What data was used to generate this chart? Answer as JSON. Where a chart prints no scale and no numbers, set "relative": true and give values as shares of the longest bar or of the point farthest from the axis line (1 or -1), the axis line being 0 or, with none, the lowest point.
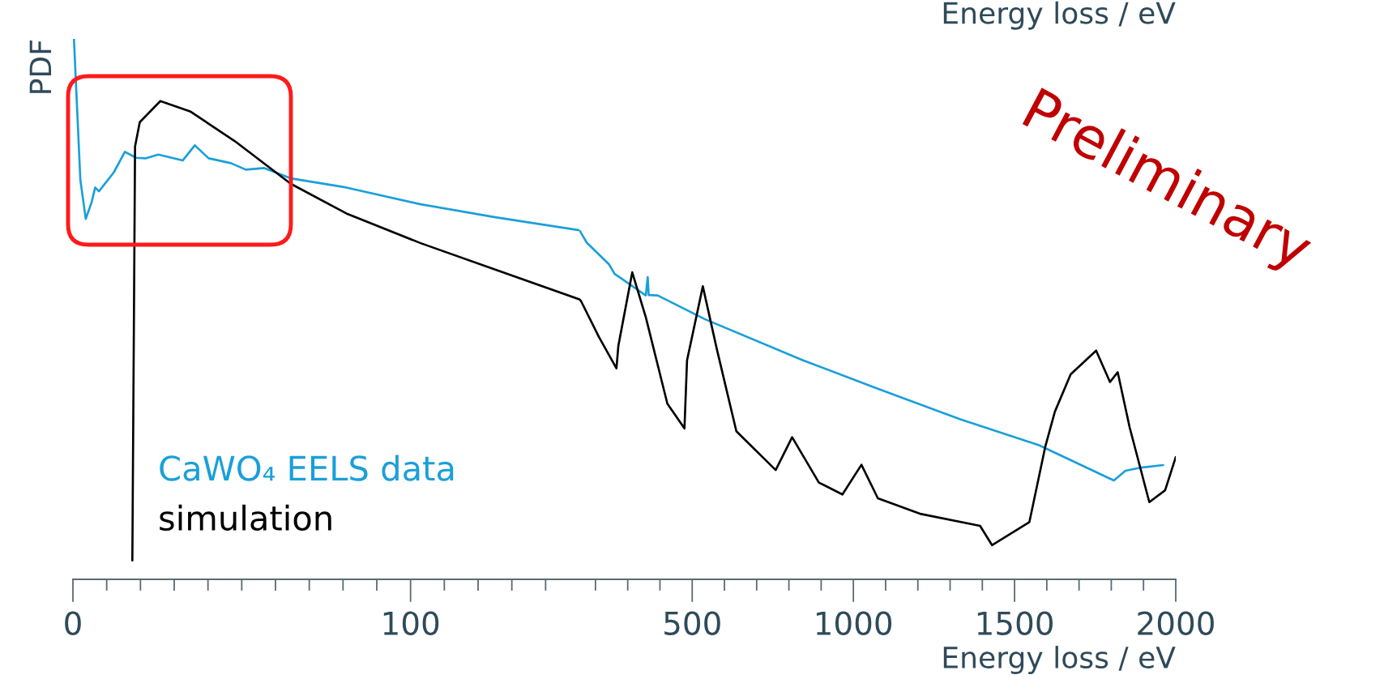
{
  "chart_data": [
    {
      "type": "line",
      "relative": true,
      "ylabel": "PDF",
      "tick_labels": "x",
      "marker": "none",
      "line_style": "solid",
      "xlim": [
        0,
        150
      ],
      "xticks": [
        0,
        {
          "value": 10,
          "label": null
        },
        {
          "value": 20,
          "label": null
        },
        {
          "value": 30,
          "label": null
        },
        {
          "value": 40,
          "label": null
        },
        {
          "value": 50,
          "label": null
        },
        {
          "value": 60,
          "label": null
        },
        {
          "value": 70,
          "label": null
        },
        {
          "value": 80,
          "label": null
        },
        {
          "value": 90,
          "label": null
        },
        100,
        {
          "value": 110,
          "label": null
        },
        {
          "value": 120,
          "label": null
        },
        {
          "value": 130,
          "label": null
        },
        {
          "value": 140,
          "label": null
        }
      ],
      "series": [
        {
          "name": "CaWO₄ EELS data",
          "color": "#1a9fd9",
          "x": [
            0.3,
            1.1,
            2.2,
            3.8,
            5.5,
            6.6,
            7.7,
            12.1,
            15.4,
            18.7,
            21.5,
            25.3,
            32.5,
            36.1,
            40.2,
            46.8,
            51.2,
            56.7,
            64.5,
            81.0,
            103.0,
            125.1,
            150.0
          ],
          "values": [
            1.0,
            0.89,
            0.739,
            0.667,
            0.697,
            0.725,
            0.718,
            0.753,
            0.791,
            0.78,
            0.779,
            0.786,
            0.775,
            0.803,
            0.779,
            0.77,
            0.758,
            0.761,
            0.742,
            0.725,
            0.694,
            0.67,
            0.646
          ]
        },
        {
          "name": "simulation",
          "color": "#000000",
          "x": [
            17.6,
            18.4,
            19.8,
            25.9,
            34.7,
            47.9,
            64.5,
            81.0,
            103.0,
            125.1,
            150.0
          ],
          "values": [
            0.035,
            0.801,
            0.846,
            0.885,
            0.866,
            0.811,
            0.732,
            0.677,
            0.622,
            0.573,
            0.518
          ]
        }
      ]
    },
    {
      "type": "line",
      "relative": true,
      "xlabel": "Energy loss / eV",
      "tick_labels": "x",
      "marker": "none",
      "line_style": "solid",
      "xlim": [
        150,
        2000
      ],
      "xticks": [
        {
          "value": 200,
          "label": null
        },
        {
          "value": 300,
          "label": null
        },
        {
          "value": 400,
          "label": null
        },
        500,
        {
          "value": 600,
          "label": null
        },
        {
          "value": 700,
          "label": null
        },
        {
          "value": 800,
          "label": null
        },
        {
          "value": 900,
          "label": null
        },
        1000,
        {
          "value": 1100,
          "label": null
        },
        {
          "value": 1200,
          "label": null
        },
        {
          "value": 1300,
          "label": null
        },
        {
          "value": 1400,
          "label": null
        },
        1500,
        {
          "value": 1600,
          "label": null
        },
        {
          "value": 1700,
          "label": null
        },
        {
          "value": 1800,
          "label": null
        },
        {
          "value": 1900,
          "label": null
        },
        2000
      ],
      "annotations": [
        "Energy loss / eV",
        "Preliminary"
      ],
      "series": [
        {
          "color": "#1a9fd9",
          "x": [
            150,
            173,
            242,
            259,
            356,
            362,
            365,
            393,
            539,
            844,
            1064,
            1332,
            1576,
            1808,
            1844,
            1893,
            1961
          ],
          "values": [
            1.0,
            0.964,
            0.902,
            0.875,
            0.813,
            0.865,
            0.814,
            0.813,
            0.745,
            0.627,
            0.55,
            0.458,
            0.384,
            0.283,
            0.311,
            0.32,
            0.327
          ]
        },
        {
          "color": "#000000",
          "x": [
            150,
            155,
            210,
            265,
            271,
            314,
            356,
            423,
            476,
            484,
            533,
            576,
            637,
            759,
            810,
            893,
            966,
            1025,
            1076,
            1210,
            1393,
            1430,
            1546,
            1595,
            1625,
            1674,
            1753,
            1796,
            1820,
            1857,
            1918,
            1967,
            2000
          ],
          "values": [
            0.802,
            0.797,
            0.695,
            0.604,
            0.669,
            0.879,
            0.751,
            0.503,
            0.432,
            0.627,
            0.839,
            0.661,
            0.424,
            0.313,
            0.407,
            0.277,
            0.243,
            0.328,
            0.232,
            0.187,
            0.153,
            0.098,
            0.164,
            0.379,
            0.48,
            0.587,
            0.655,
            0.565,
            0.593,
            0.435,
            0.221,
            0.255,
            0.35
          ]
        }
      ]
    }
  ]
}
